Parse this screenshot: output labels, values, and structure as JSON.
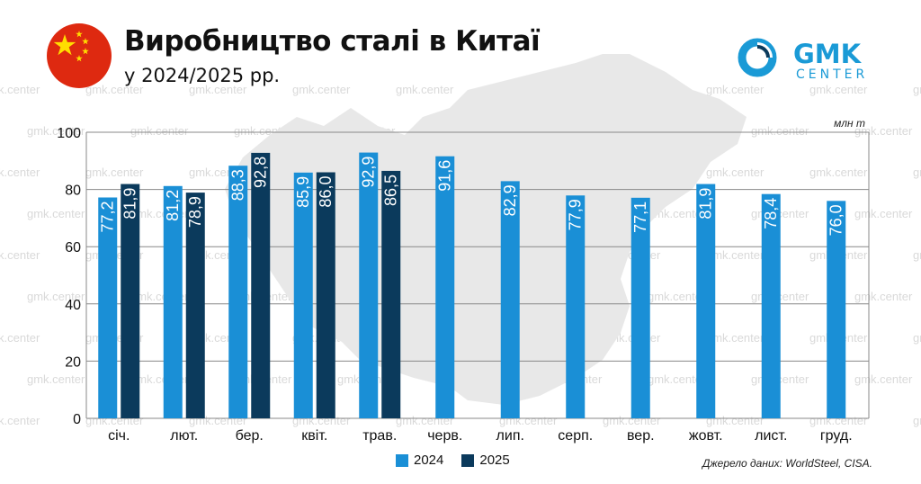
{
  "header": {
    "title": "Виробництво сталі в Китаї",
    "subtitle": "у 2024/2025 рр.",
    "unit_label": "млн т",
    "source": "Джерело даних: WorldSteel, CISA."
  },
  "logo": {
    "top": "GMK",
    "bottom": "CENTER",
    "color": "#1a9ad6"
  },
  "watermark_text": "gmk.center",
  "flag": {
    "icon": "china-flag-icon",
    "red": "#de2910",
    "star": "#ffde00"
  },
  "colors": {
    "series_2024": "#1a8fd6",
    "series_2025": "#0b3a5c",
    "background_map": "#e6e6e6"
  },
  "chart_data": {
    "type": "bar",
    "categories": [
      "січ.",
      "лют.",
      "бер.",
      "квіт.",
      "трав.",
      "черв.",
      "лип.",
      "серп.",
      "вер.",
      "жовт.",
      "лист.",
      "груд."
    ],
    "series": [
      {
        "name": "2024",
        "values": [
          77.2,
          81.2,
          88.3,
          85.9,
          92.9,
          91.6,
          82.9,
          77.9,
          77.1,
          81.9,
          78.4,
          76.0
        ],
        "labels": [
          "77,2",
          "81,2",
          "88,3",
          "85,9",
          "92,9",
          "91,6",
          "82,9",
          "77,9",
          "77,1",
          "81,9",
          "78,4",
          "76,0"
        ]
      },
      {
        "name": "2025",
        "values": [
          81.9,
          78.9,
          92.8,
          86.0,
          86.5,
          null,
          null,
          null,
          null,
          null,
          null,
          null
        ],
        "labels": [
          "81,9",
          "78,9",
          "92,8",
          "86,0",
          "86,5",
          null,
          null,
          null,
          null,
          null,
          null,
          null
        ]
      }
    ],
    "yticks": [
      "0",
      "20",
      "40",
      "60",
      "80",
      "100"
    ],
    "ylim": [
      0,
      100
    ],
    "grid": true,
    "legend": "bottom-center"
  }
}
